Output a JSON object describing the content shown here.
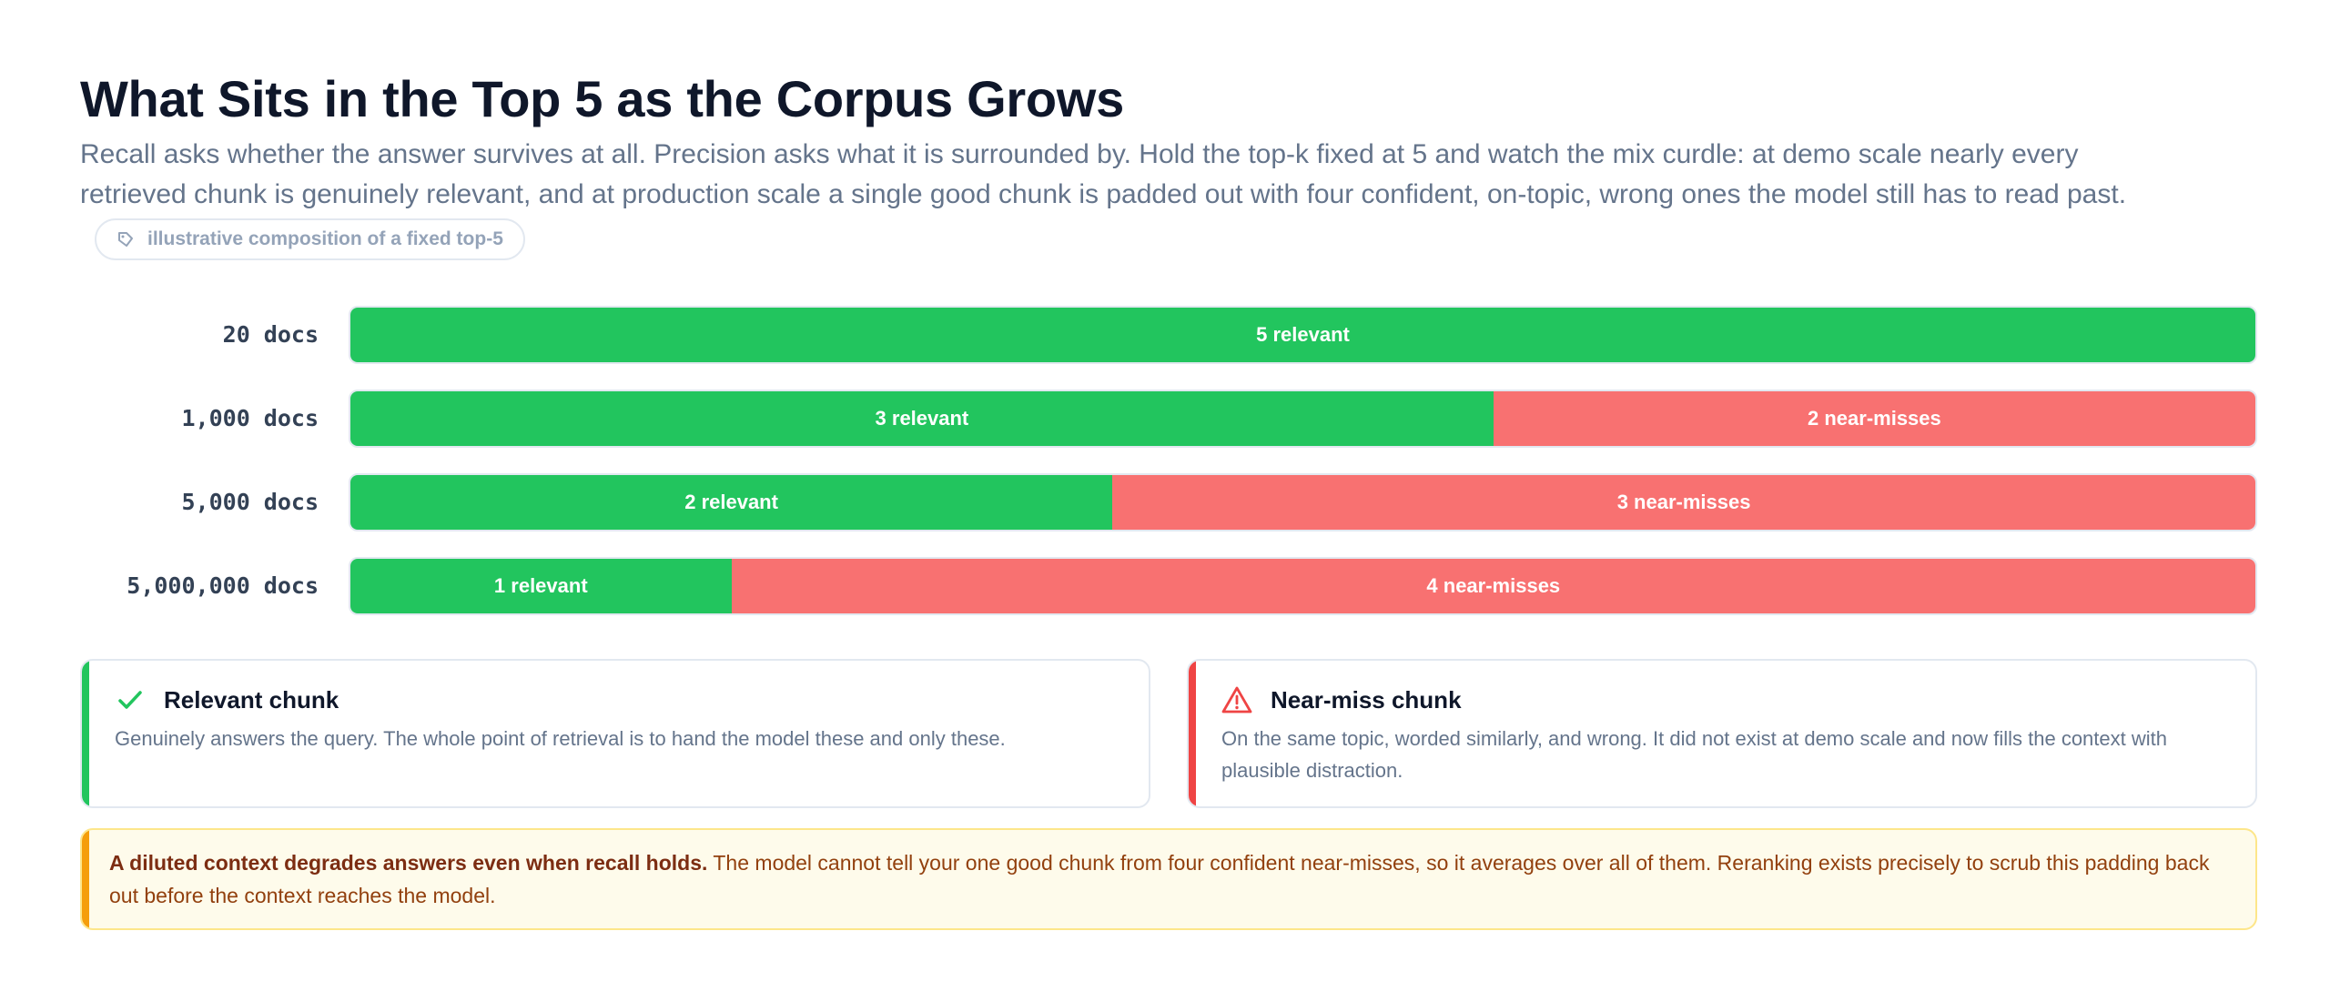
{
  "title": "What Sits in the Top 5 as the Corpus Grows",
  "subtitle": "Recall asks whether the answer survives at all. Precision asks what it is surrounded by. Hold the top-k fixed at 5 and watch the mix curdle: at demo scale nearly every retrieved chunk is genuinely relevant, and at production scale a single good chunk is padded out with four confident, on-topic, wrong ones the model still has to read past.",
  "badge": {
    "icon": "tag-icon",
    "label": "illustrative composition of a fixed top-5"
  },
  "colors": {
    "relevant": "#22c55e",
    "near_miss": "#f87171",
    "near_miss_accent": "#ef4444",
    "callout_accent": "#f59e0b"
  },
  "chart_data": {
    "type": "bar",
    "orientation": "horizontal",
    "stacked": true,
    "total": 5,
    "categories": [
      "20 docs",
      "1,000 docs",
      "5,000 docs",
      "5,000,000 docs"
    ],
    "series": [
      {
        "name": "relevant",
        "values": [
          5,
          3,
          2,
          1
        ],
        "labels": [
          "5 relevant",
          "3 relevant",
          "2 relevant",
          "1 relevant"
        ]
      },
      {
        "name": "near-misses",
        "values": [
          0,
          2,
          3,
          4
        ],
        "labels": [
          "",
          "2 near-misses",
          "3 near-misses",
          "4 near-misses"
        ]
      }
    ]
  },
  "legend": {
    "relevant": {
      "icon": "check-icon",
      "title": "Relevant chunk",
      "body": "Genuinely answers the query. The whole point of retrieval is to hand the model these and only these."
    },
    "near_miss": {
      "icon": "warning-icon",
      "title": "Near-miss chunk",
      "body": "On the same topic, worded similarly, and wrong. It did not exist at demo scale and now fills the context with plausible distraction."
    }
  },
  "callout": {
    "bold": "A diluted context degrades answers even when recall holds.",
    "text": " The model cannot tell your one good chunk from four confident near-misses, so it averages over all of them. Reranking exists precisely to scrub this padding back out before the context reaches the model."
  }
}
